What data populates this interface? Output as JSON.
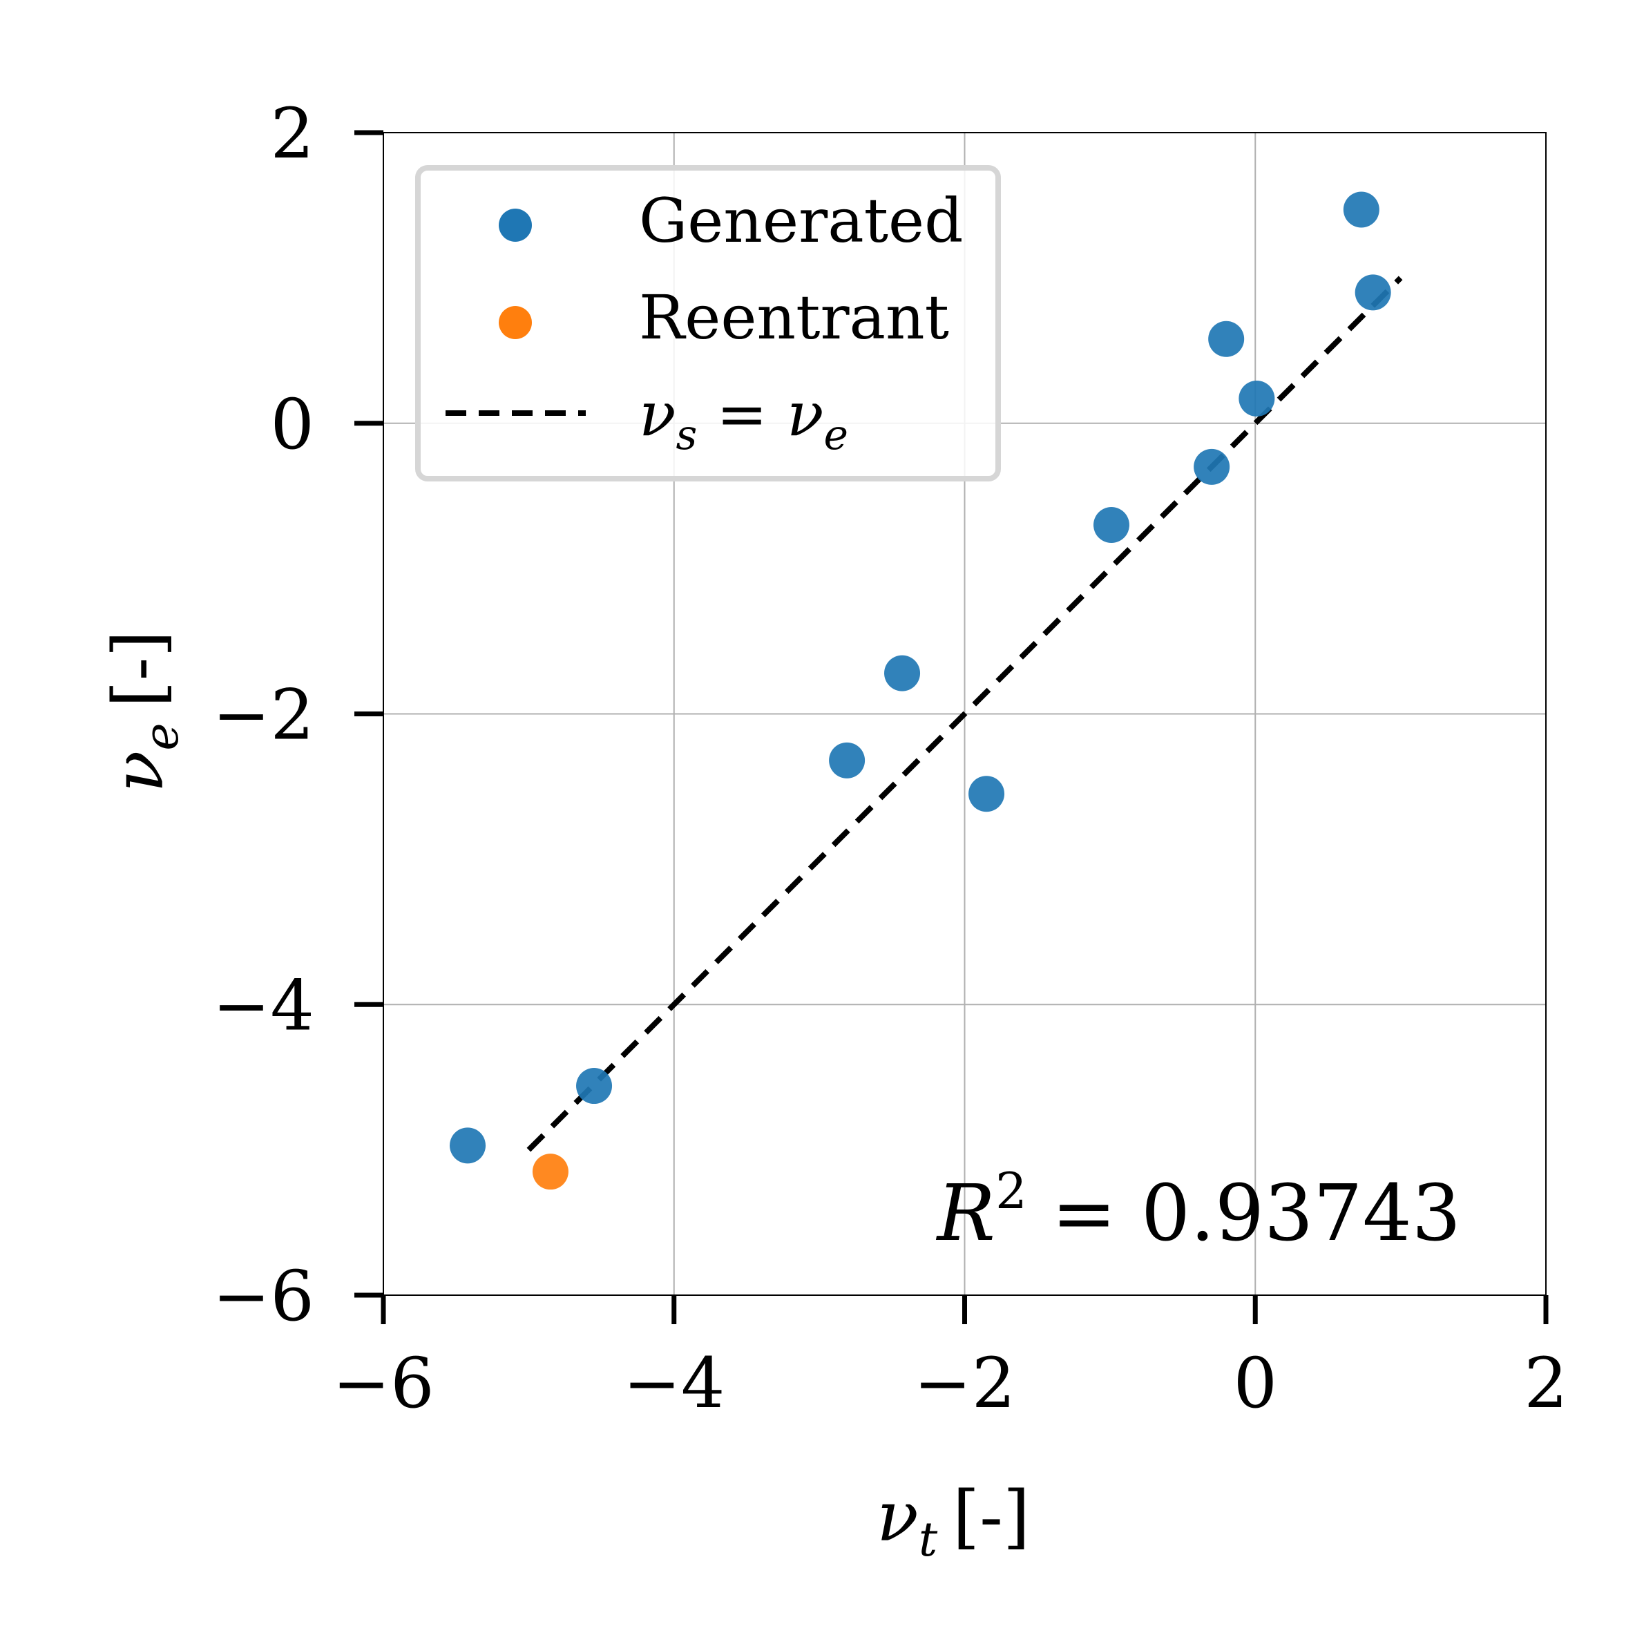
{
  "chart_data": {
    "type": "scatter",
    "xlabel": {
      "symbol": "ν",
      "sub": "t",
      "unit": "[-]"
    },
    "ylabel": {
      "symbol": "ν",
      "sub": "e",
      "unit": "[-]"
    },
    "xlim": [
      -6,
      2
    ],
    "ylim": [
      -6,
      2
    ],
    "xticks": [
      -6,
      -4,
      -2,
      0,
      2
    ],
    "yticks": [
      -6,
      -4,
      -2,
      0,
      2
    ],
    "tick_labels": {
      "x": [
        "−6",
        "−4",
        "−2",
        "0",
        "2"
      ],
      "y": [
        "−6",
        "−4",
        "−2",
        "0",
        "2"
      ]
    },
    "grid": true,
    "legend_position": "top-left",
    "series": [
      {
        "name": "Generated",
        "color": "#1f77b4",
        "points": [
          {
            "x": -5.42,
            "y": -4.97
          },
          {
            "x": -4.55,
            "y": -4.56
          },
          {
            "x": -2.81,
            "y": -2.32
          },
          {
            "x": -2.43,
            "y": -1.72
          },
          {
            "x": -1.85,
            "y": -2.55
          },
          {
            "x": -0.99,
            "y": -0.7
          },
          {
            "x": -0.3,
            "y": -0.3
          },
          {
            "x": -0.2,
            "y": 0.58
          },
          {
            "x": 0.01,
            "y": 0.17
          },
          {
            "x": 0.73,
            "y": 1.47
          },
          {
            "x": 0.81,
            "y": 0.9
          }
        ]
      },
      {
        "name": "Reentrant",
        "color": "#ff7f0e",
        "points": [
          {
            "x": -4.85,
            "y": -5.15
          }
        ]
      }
    ],
    "reference_line": {
      "label": {
        "lhs": "ν",
        "lhs_sub": "s",
        "eq": " = ",
        "rhs": "ν",
        "rhs_sub": "e"
      },
      "style": "dashed",
      "color": "#000000",
      "x": [
        -5.0,
        1.0
      ],
      "y": [
        -5.0,
        1.0
      ]
    },
    "annotation": {
      "lhs": "R",
      "sup": "2",
      "text": " = 0.93743"
    }
  }
}
